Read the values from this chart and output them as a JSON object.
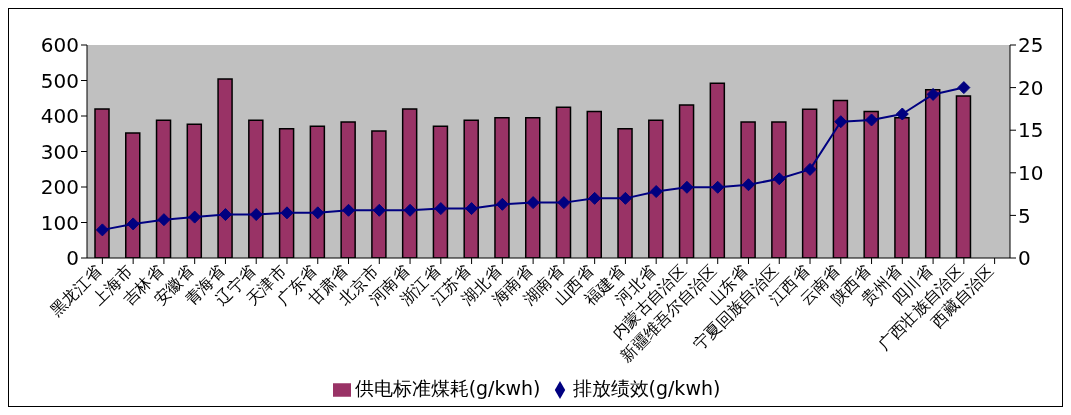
{
  "chart_data": {
    "type": "bar",
    "categories": [
      "黑龙江省",
      "上海市",
      "吉林省",
      "安徽省",
      "青海省",
      "辽宁省",
      "天津市",
      "广东省",
      "甘肃省",
      "北京市",
      "河南省",
      "浙江省",
      "江苏省",
      "湖北省",
      "海南省",
      "湖南省",
      "山西省",
      "福建省",
      "河北省",
      "内蒙古自治区",
      "新疆维吾尔自治区",
      "山东省",
      "宁夏回族自治区",
      "江西省",
      "云南省",
      "陕西省",
      "贵州省",
      "四川省",
      "广西壮族自治区",
      "西藏自治区"
    ],
    "series": [
      {
        "name": "供电标准煤耗(g/kwh)",
        "color": "#993366",
        "values": [
          420,
          352,
          388,
          377,
          504,
          388,
          364,
          371,
          383,
          358,
          420,
          371,
          388,
          395,
          395,
          425,
          413,
          364,
          388,
          431,
          492,
          383,
          383,
          419,
          444,
          413,
          395,
          474,
          456,
          null
        ]
      },
      {
        "name": "排放绩效(g/kwh)",
        "type": "line",
        "axis": "y2",
        "color": "#000080",
        "marker": "diamond",
        "values": [
          3.3,
          4.0,
          4.5,
          4.8,
          5.1,
          5.1,
          5.3,
          5.3,
          5.6,
          5.6,
          5.6,
          5.8,
          5.8,
          6.3,
          6.5,
          6.5,
          7.0,
          7.0,
          7.8,
          8.3,
          8.3,
          8.6,
          9.3,
          10.4,
          16.0,
          16.2,
          16.9,
          19.2,
          20.0,
          null
        ]
      }
    ],
    "ylim": [
      0,
      600
    ],
    "yticks": [
      0,
      100,
      200,
      300,
      400,
      500,
      600
    ],
    "y2lim": [
      0,
      25
    ],
    "y2ticks": [
      0,
      5,
      10,
      15,
      20,
      25
    ],
    "grid": false,
    "legend": "bottom"
  }
}
